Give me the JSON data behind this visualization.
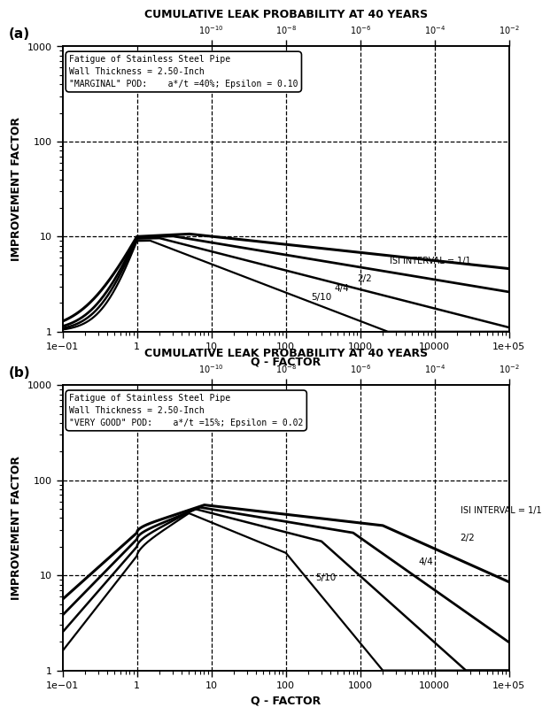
{
  "title": "CUMULATIVE LEAK PROBABILITY AT 40 YEARS",
  "xlabel": "Q - FACTOR",
  "ylabel": "IMPROVEMENT FACTOR",
  "panel_a_label": "(a)",
  "panel_b_label": "(b)",
  "panel_a_box_text": "Fatigue of Stainless Steel Pipe\nWall Thickness = 2.50-Inch\n\"MARGINAL\" POD:    a*/t =40%; Epsilon = 0.10",
  "panel_b_box_text": "Fatigue of Stainless Steel Pipe\nWall Thickness = 2.50-Inch\n\"VERY GOOD\" POD:    a*/t =15%; Epsilon = 0.02",
  "xlim": [
    0.1,
    100000
  ],
  "ylim": [
    1,
    1000
  ],
  "curve_labels_a": [
    "ISI INTERVAL = 1/1",
    "2/2",
    "4/4",
    "5/10"
  ],
  "curve_labels_b": [
    "ISI INTERVAL = 1/1",
    "2/2",
    "4/4",
    "5/10"
  ],
  "dashed_hlines_a": [
    10,
    100
  ],
  "dashed_hlines_b": [
    10,
    100
  ],
  "vgrid_positions": [
    1,
    10,
    100,
    1000,
    10000,
    100000
  ],
  "top_positions": [
    10,
    100,
    1000,
    10000,
    100000
  ],
  "top_labels": [
    "$10^{-10}$",
    "$10^{-8}$",
    "$10^{-6}$",
    "$10^{-4}$",
    "$10^{-2}$"
  ],
  "background_color": "#ffffff",
  "line_color": "#000000"
}
